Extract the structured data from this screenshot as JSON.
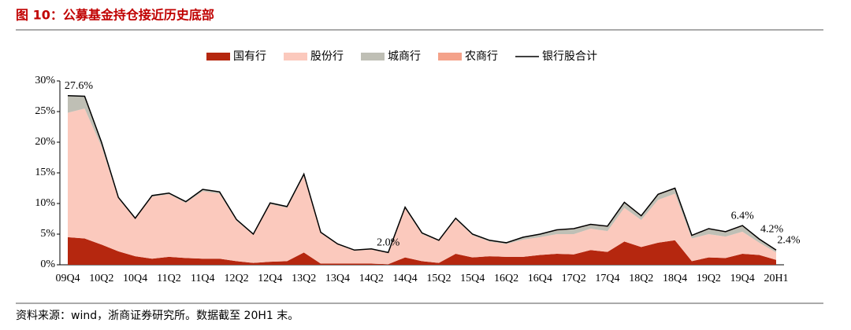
{
  "chart_data": {
    "type": "stacked-area",
    "title": "图 10：公募基金持仓接近历史底部",
    "source": "资料来源：wind，浙商证券研究所。数据截至 20H1 末。",
    "categories": [
      "09Q4",
      null,
      "10Q2",
      null,
      "10Q4",
      null,
      "11Q2",
      null,
      "11Q4",
      null,
      "12Q2",
      null,
      "12Q4",
      null,
      "13Q2",
      null,
      "13Q4",
      null,
      "14Q2",
      null,
      "14Q4",
      null,
      "15Q2",
      null,
      "15Q4",
      null,
      "16Q2",
      null,
      "16Q4",
      null,
      "17Q2",
      null,
      "17Q4",
      null,
      "18Q2",
      null,
      "18Q4",
      null,
      "19Q2",
      null,
      "19Q4",
      null,
      "20H1"
    ],
    "ylim": [
      0,
      30
    ],
    "yticks": [
      {
        "value": 0,
        "label": "0%"
      },
      {
        "value": 5,
        "label": "5%"
      },
      {
        "value": 10,
        "label": "10%"
      },
      {
        "value": 15,
        "label": "15%"
      },
      {
        "value": 20,
        "label": "20%"
      },
      {
        "value": 25,
        "label": "25%"
      },
      {
        "value": 30,
        "label": "30%"
      }
    ],
    "series": [
      {
        "name": "国有行",
        "color": "#b5270f",
        "values": [
          4.5,
          4.3,
          3.3,
          2.2,
          1.4,
          1.0,
          1.3,
          1.1,
          1.0,
          1.0,
          0.6,
          0.3,
          0.5,
          0.6,
          2.0,
          0.2,
          0.2,
          0.2,
          0.2,
          0.1,
          1.2,
          0.6,
          0.3,
          1.8,
          1.2,
          1.4,
          1.3,
          1.3,
          1.6,
          1.8,
          1.7,
          2.4,
          2.1,
          3.8,
          2.9,
          3.6,
          4.0,
          0.6,
          1.2,
          1.1,
          1.8,
          1.6,
          0.8
        ]
      },
      {
        "name": "股份行",
        "color": "#fbc9bd",
        "values": [
          20.3,
          21.2,
          16.0,
          8.6,
          6.1,
          10.1,
          10.2,
          9.0,
          11.0,
          10.6,
          6.6,
          4.6,
          9.4,
          8.7,
          12.5,
          5.0,
          3.1,
          2.1,
          2.3,
          1.8,
          8.0,
          4.4,
          3.6,
          5.6,
          3.6,
          2.4,
          2.1,
          2.8,
          2.9,
          3.2,
          3.3,
          3.5,
          3.4,
          5.5,
          4.4,
          7.0,
          7.6,
          3.7,
          3.8,
          3.5,
          3.6,
          2.0,
          1.2
        ]
      },
      {
        "name": "城商行",
        "color": "#bfbfb5",
        "values": [
          2.8,
          2.0,
          0.7,
          0.2,
          0.1,
          0.2,
          0.2,
          0.2,
          0.3,
          0.3,
          0.2,
          0.1,
          0.2,
          0.2,
          0.3,
          0.1,
          0.1,
          0.1,
          0.1,
          0.1,
          0.2,
          0.2,
          0.1,
          0.2,
          0.2,
          0.2,
          0.2,
          0.4,
          0.5,
          0.6,
          0.8,
          0.6,
          0.7,
          0.8,
          0.6,
          0.8,
          0.8,
          0.4,
          0.8,
          0.7,
          0.9,
          0.5,
          0.3
        ]
      },
      {
        "name": "农商行",
        "color": "#f4a28a",
        "values": [
          0,
          0,
          0,
          0,
          0,
          0,
          0,
          0,
          0,
          0,
          0,
          0,
          0,
          0,
          0,
          0,
          0,
          0,
          0,
          0,
          0,
          0,
          0,
          0,
          0,
          0,
          0,
          0,
          0,
          0.1,
          0.1,
          0.1,
          0.1,
          0.1,
          0.1,
          0.1,
          0.1,
          0.1,
          0.1,
          0.1,
          0.1,
          0.1,
          0.1
        ]
      },
      {
        "name": "银行股合计",
        "color": "#000000",
        "kind": "line",
        "values": [
          27.6,
          27.5,
          20.0,
          11.0,
          7.6,
          11.3,
          11.7,
          10.3,
          12.3,
          11.9,
          7.4,
          5.0,
          10.1,
          9.5,
          14.8,
          5.3,
          3.4,
          2.4,
          2.6,
          2.0,
          9.4,
          5.2,
          4.0,
          7.6,
          5.0,
          4.0,
          3.6,
          4.5,
          5.0,
          5.7,
          5.9,
          6.6,
          6.3,
          10.2,
          8.0,
          11.5,
          12.5,
          4.8,
          5.9,
          5.4,
          6.4,
          4.2,
          2.4
        ],
        "value_labels": [
          "27.6%",
          null,
          null,
          null,
          null,
          null,
          null,
          null,
          null,
          null,
          null,
          null,
          null,
          null,
          null,
          null,
          null,
          null,
          null,
          "2.0%",
          null,
          null,
          null,
          null,
          null,
          null,
          null,
          null,
          null,
          null,
          null,
          null,
          null,
          null,
          null,
          null,
          null,
          null,
          null,
          null,
          "6.4%",
          "4.2%",
          "2.4%"
        ]
      }
    ]
  }
}
